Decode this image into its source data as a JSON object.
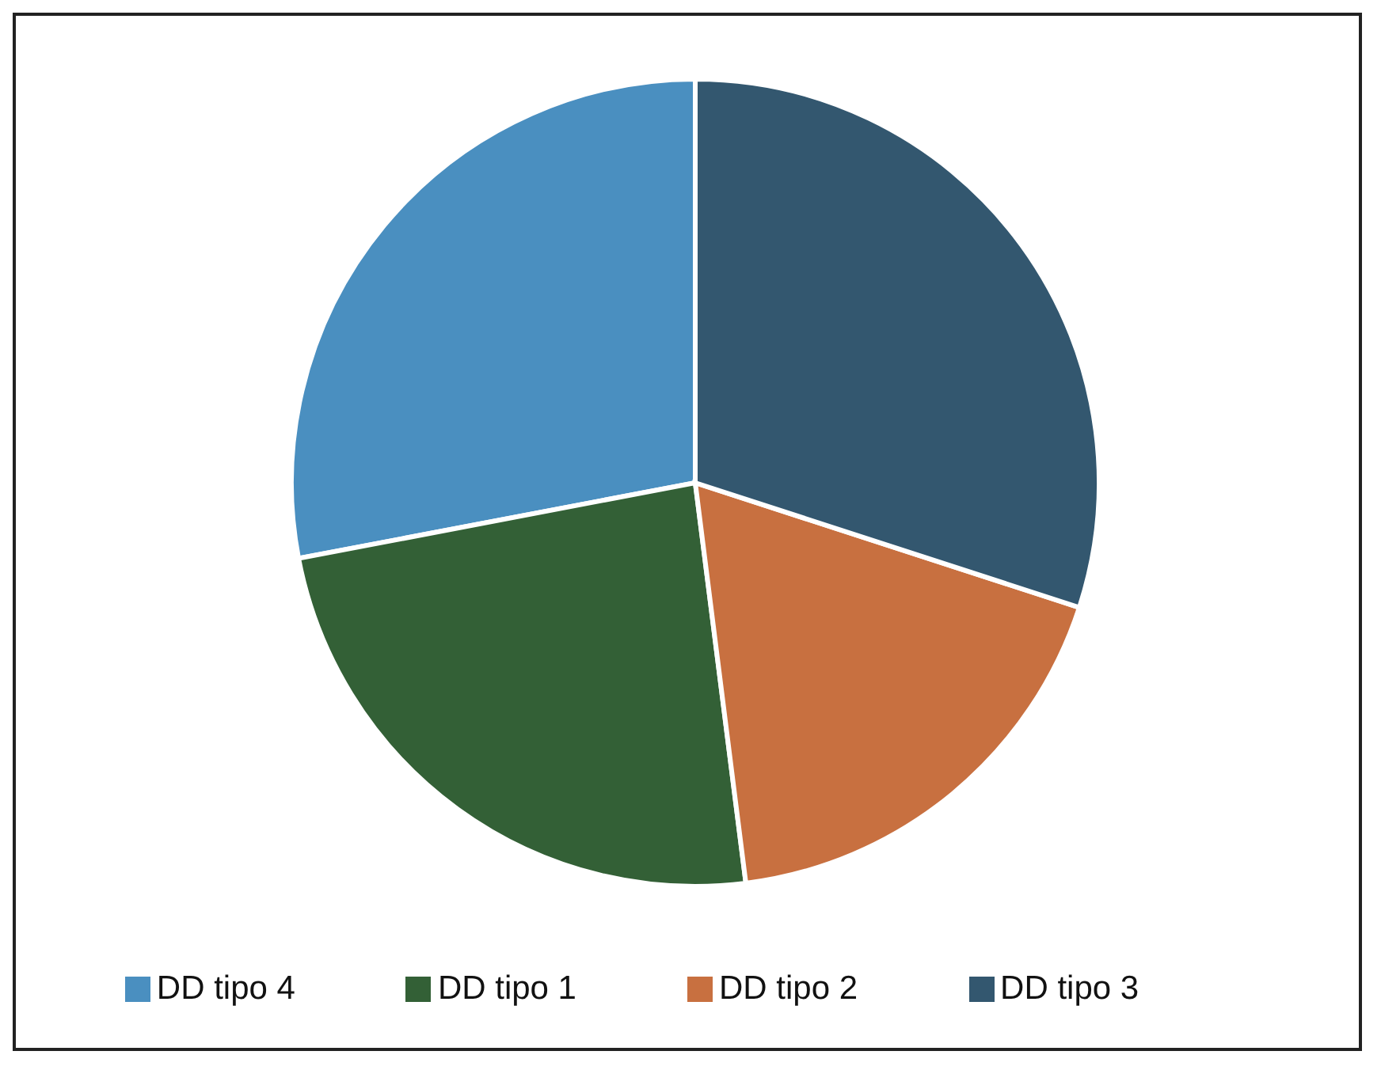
{
  "chart_data": {
    "type": "pie",
    "categories": [
      "DD tipo 4",
      "DD tipo 1",
      "DD tipo 2",
      "DD tipo 3"
    ],
    "values": [
      28,
      24,
      18,
      30
    ],
    "colors": [
      "#4a8fc0",
      "#336036",
      "#c87040",
      "#33576f"
    ],
    "legend": "bottom"
  }
}
